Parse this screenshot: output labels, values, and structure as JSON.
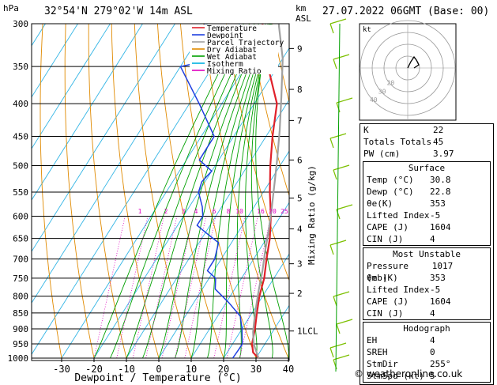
{
  "header": {
    "hpa": "hPa",
    "location": "32°54'N  279°02'W  14m  ASL",
    "km": "km",
    "asl": "ASL",
    "datetime": "27.07.2022  06GMT  (Base: 00)"
  },
  "legend": [
    {
      "label": "Temperature",
      "color": "#e0202a"
    },
    {
      "label": "Dewpoint",
      "color": "#1f3fe0"
    },
    {
      "label": "Parcel Trajectory",
      "color": "#a0a0a0"
    },
    {
      "label": "Dry Adiabat",
      "color": "#e08a00"
    },
    {
      "label": "Wet Adiabat",
      "color": "#00a000"
    },
    {
      "label": "Isotherm",
      "color": "#00b0e0"
    },
    {
      "label": "Mixing Ratio",
      "color": "#e000c0"
    }
  ],
  "chart_data": {
    "type": "line",
    "xlabel": "Dewpoint / Temperature (°C)",
    "ylabel": "hPa",
    "xticks": [
      -30,
      -20,
      -10,
      0,
      10,
      20,
      30,
      40
    ],
    "pressure_levels": [
      300,
      350,
      400,
      450,
      500,
      550,
      600,
      650,
      700,
      750,
      800,
      850,
      900,
      950,
      1000
    ],
    "km_ticks": [
      {
        "label": "9",
        "p": 328
      },
      {
        "label": "8",
        "p": 380
      },
      {
        "label": "7",
        "p": 425
      },
      {
        "label": "6",
        "p": 490
      },
      {
        "label": "5",
        "p": 562
      },
      {
        "label": "4",
        "p": 628
      },
      {
        "label": "3",
        "p": 712
      },
      {
        "label": "2",
        "p": 792
      },
      {
        "label": "1LCL",
        "p": 907
      }
    ],
    "mixing_ratio_labels": [
      "1",
      "2",
      "3",
      "4",
      "6",
      "8",
      "10",
      "16",
      "20",
      "25"
    ],
    "right_axis_label": "Mixing Ratio (g/kg)",
    "series": [
      {
        "name": "Temperature",
        "points": [
          [
            30.8,
            1000
          ],
          [
            28,
            980
          ],
          [
            26,
            950
          ],
          [
            25,
            925
          ],
          [
            24,
            900
          ],
          [
            21.5,
            850
          ],
          [
            19,
            800
          ],
          [
            17,
            750
          ],
          [
            14,
            700
          ],
          [
            11,
            650
          ],
          [
            7,
            600
          ],
          [
            2,
            550
          ],
          [
            -3,
            500
          ],
          [
            -8,
            450
          ],
          [
            -13,
            400
          ],
          [
            -23,
            350
          ],
          [
            -33,
            300
          ]
        ]
      },
      {
        "name": "Dewpoint",
        "points": [
          [
            22.8,
            1000
          ],
          [
            23,
            970
          ],
          [
            23,
            950
          ],
          [
            21.5,
            925
          ],
          [
            20,
            900
          ],
          [
            17,
            860
          ],
          [
            11,
            820
          ],
          [
            4,
            780
          ],
          [
            2,
            750
          ],
          [
            -2,
            730
          ],
          [
            -2,
            700
          ],
          [
            -4,
            660
          ],
          [
            -9,
            640
          ],
          [
            -14,
            620
          ],
          [
            -14,
            600
          ],
          [
            -16,
            580
          ],
          [
            -20,
            550
          ],
          [
            -21,
            530
          ],
          [
            -20,
            510
          ],
          [
            -26,
            490
          ],
          [
            -26,
            470
          ],
          [
            -26,
            450
          ],
          [
            -37,
            400
          ],
          [
            -50,
            350
          ],
          [
            -40,
            340
          ],
          [
            -51,
            300
          ]
        ]
      },
      {
        "name": "Parcel Trajectory",
        "points": [
          [
            30.8,
            1000
          ],
          [
            26.5,
            950
          ],
          [
            24,
            910
          ],
          [
            22.5,
            880
          ],
          [
            20,
            830
          ],
          [
            17.5,
            780
          ],
          [
            15,
            730
          ],
          [
            12,
            680
          ],
          [
            9,
            630
          ],
          [
            5.5,
            580
          ],
          [
            1.5,
            530
          ],
          [
            -2,
            490
          ],
          [
            -7,
            440
          ],
          [
            -13,
            390
          ],
          [
            -20,
            340
          ],
          [
            -28,
            300
          ]
        ]
      }
    ]
  },
  "hodograph": {
    "label": "kt",
    "ring_labels": [
      "20",
      "30",
      "40"
    ]
  },
  "indices": [
    {
      "name": "K",
      "value": "22"
    },
    {
      "name": "Totals Totals",
      "value": "45"
    },
    {
      "name": "PW (cm)",
      "value": "3.97"
    }
  ],
  "surface": {
    "title": "Surface",
    "rows": [
      {
        "name": "Temp (°C)",
        "value": "30.8"
      },
      {
        "name": "Dewp (°C)",
        "value": "22.8"
      },
      {
        "name": "θe(K)",
        "value": "353"
      },
      {
        "name": "Lifted Index",
        "value": "-5"
      },
      {
        "name": "CAPE (J)",
        "value": "1604"
      },
      {
        "name": "CIN (J)",
        "value": "4"
      }
    ]
  },
  "most_unstable": {
    "title": "Most Unstable",
    "rows": [
      {
        "name": "Pressure (mb)",
        "value": "1017"
      },
      {
        "name": "θe (K)",
        "value": "353"
      },
      {
        "name": "Lifted Index",
        "value": "-5"
      },
      {
        "name": "CAPE (J)",
        "value": "1604"
      },
      {
        "name": "CIN (J)",
        "value": "4"
      }
    ]
  },
  "hodograph_table": {
    "title": "Hodograph",
    "rows": [
      {
        "name": "EH",
        "value": "4"
      },
      {
        "name": "SREH",
        "value": "0"
      },
      {
        "name": "StmDir",
        "value": "255°"
      },
      {
        "name": "StmSpd (kt)",
        "value": "5"
      }
    ]
  },
  "credit": "© weatheronline.co.uk"
}
